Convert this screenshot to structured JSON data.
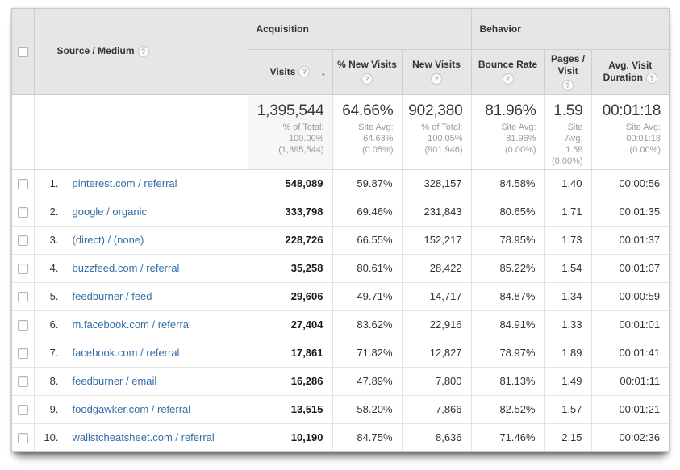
{
  "colors": {
    "header_bg": "#e6e6e6",
    "link_blue": "#336ea9",
    "sorted_column_bg": "#f4f4f4",
    "outer_border": "#c9c9c9",
    "inner_border": "#e3e3e3",
    "text": "#333333",
    "subtext": "#9b9b9b"
  },
  "icons": {
    "help": "?",
    "sort_desc": "↓"
  },
  "header": {
    "groups": {
      "acquisition": "Acquisition",
      "behavior": "Behavior"
    },
    "columns": {
      "source": "Source / Medium",
      "visits": "Visits",
      "pct_new_visits": "% New Visits",
      "new_visits": "New Visits",
      "bounce_rate": "Bounce Rate",
      "pages_visit": "Pages / Visit",
      "avg_duration": "Avg. Visit Duration"
    },
    "sorted_column": "visits",
    "sort_direction": "descending"
  },
  "summary": {
    "visits": {
      "value": "1,395,544",
      "sub": "% of Total:\n100.00%\n(1,395,544)"
    },
    "pct_new_visits": {
      "value": "64.66%",
      "sub": "Site Avg:\n64.63%\n(0.05%)"
    },
    "new_visits": {
      "value": "902,380",
      "sub": "% of Total:\n100.05%\n(901,946)"
    },
    "bounce_rate": {
      "value": "81.96%",
      "sub": "Site Avg:\n81.96%\n(0.00%)"
    },
    "pages_visit": {
      "value": "1.59",
      "sub": "Site\nAvg:\n1.59\n(0.00%)"
    },
    "avg_duration": {
      "value": "00:01:18",
      "sub": "Site Avg:\n00:01:18\n(0.00%)"
    }
  },
  "rows": [
    {
      "rank": "1.",
      "source": "pinterest.com / referral",
      "visits": "548,089",
      "pct_new_visits": "59.87%",
      "new_visits": "328,157",
      "bounce_rate": "84.58%",
      "pages_visit": "1.40",
      "avg_duration": "00:00:56"
    },
    {
      "rank": "2.",
      "source": "google / organic",
      "visits": "333,798",
      "pct_new_visits": "69.46%",
      "new_visits": "231,843",
      "bounce_rate": "80.65%",
      "pages_visit": "1.71",
      "avg_duration": "00:01:35"
    },
    {
      "rank": "3.",
      "source": "(direct) / (none)",
      "visits": "228,726",
      "pct_new_visits": "66.55%",
      "new_visits": "152,217",
      "bounce_rate": "78.95%",
      "pages_visit": "1.73",
      "avg_duration": "00:01:37"
    },
    {
      "rank": "4.",
      "source": "buzzfeed.com / referral",
      "visits": "35,258",
      "pct_new_visits": "80.61%",
      "new_visits": "28,422",
      "bounce_rate": "85.22%",
      "pages_visit": "1.54",
      "avg_duration": "00:01:07"
    },
    {
      "rank": "5.",
      "source": "feedburner / feed",
      "visits": "29,606",
      "pct_new_visits": "49.71%",
      "new_visits": "14,717",
      "bounce_rate": "84.87%",
      "pages_visit": "1.34",
      "avg_duration": "00:00:59"
    },
    {
      "rank": "6.",
      "source": "m.facebook.com / referral",
      "visits": "27,404",
      "pct_new_visits": "83.62%",
      "new_visits": "22,916",
      "bounce_rate": "84.91%",
      "pages_visit": "1.33",
      "avg_duration": "00:01:01"
    },
    {
      "rank": "7.",
      "source": "facebook.com / referral",
      "visits": "17,861",
      "pct_new_visits": "71.82%",
      "new_visits": "12,827",
      "bounce_rate": "78.97%",
      "pages_visit": "1.89",
      "avg_duration": "00:01:41"
    },
    {
      "rank": "8.",
      "source": "feedburner / email",
      "visits": "16,286",
      "pct_new_visits": "47.89%",
      "new_visits": "7,800",
      "bounce_rate": "81.13%",
      "pages_visit": "1.49",
      "avg_duration": "00:01:11"
    },
    {
      "rank": "9.",
      "source": "foodgawker.com / referral",
      "visits": "13,515",
      "pct_new_visits": "58.20%",
      "new_visits": "7,866",
      "bounce_rate": "82.52%",
      "pages_visit": "1.57",
      "avg_duration": "00:01:21"
    },
    {
      "rank": "10.",
      "source": "wallstcheatsheet.com / referral",
      "visits": "10,190",
      "pct_new_visits": "84.75%",
      "new_visits": "8,636",
      "bounce_rate": "71.46%",
      "pages_visit": "2.15",
      "avg_duration": "00:02:36"
    }
  ]
}
